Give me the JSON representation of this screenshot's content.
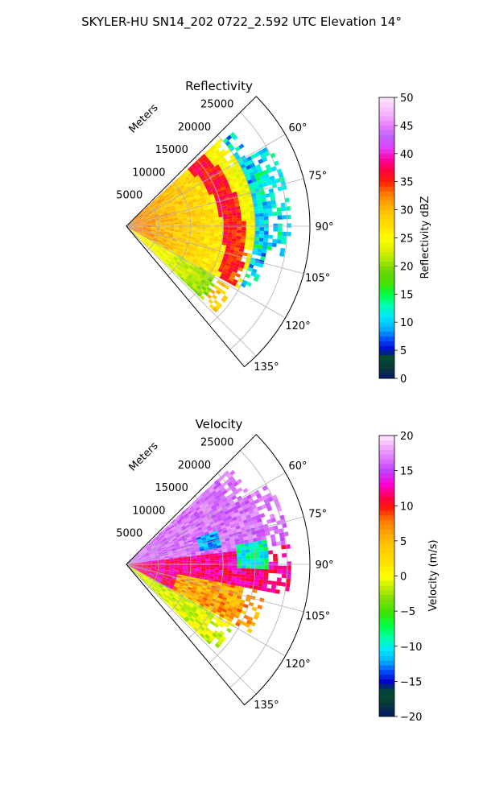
{
  "figure_title": "SKYLER-HU  SN14_202  0722_2.592 UTC Elevation 14°",
  "chart_data": [
    {
      "type": "heatmap",
      "title": "Reflectivity",
      "radial_label": "Meters",
      "radial_ticks": [
        5000,
        10000,
        15000,
        20000,
        25000
      ],
      "radial_tick_labels": [
        "5000",
        "10000",
        "15000",
        "20000",
        "25000"
      ],
      "rlim": [
        0,
        28500
      ],
      "angle_ticks": [
        60,
        75,
        90,
        105,
        120,
        135
      ],
      "angle_tick_labels": [
        "60°",
        "75°",
        "90°",
        "105°",
        "120°",
        "135°"
      ],
      "theta_range_deg": [
        45,
        140
      ],
      "colorbar": {
        "label": "Reflectivity dBZ",
        "range": [
          0,
          50
        ],
        "ticks": [
          0,
          5,
          10,
          15,
          20,
          25,
          30,
          35,
          40,
          45,
          50
        ],
        "tick_labels": [
          "0",
          "5",
          "10",
          "15",
          "20",
          "25",
          "30",
          "35",
          "40",
          "45",
          "50"
        ],
        "colormap": [
          [
            0,
            "#001a66"
          ],
          [
            2,
            "#0a3a3a"
          ],
          [
            4,
            "#004f2a"
          ],
          [
            5,
            "#0000c8"
          ],
          [
            7,
            "#0050ff"
          ],
          [
            9,
            "#00b4ff"
          ],
          [
            11,
            "#00e8ff"
          ],
          [
            13,
            "#00ffb0"
          ],
          [
            15,
            "#00ff40"
          ],
          [
            17,
            "#44e000"
          ],
          [
            19,
            "#66d400"
          ],
          [
            21,
            "#a8e800"
          ],
          [
            23,
            "#e0f000"
          ],
          [
            25,
            "#ffff00"
          ],
          [
            27,
            "#ffe000"
          ],
          [
            29,
            "#ffcc00"
          ],
          [
            31,
            "#ffa800"
          ],
          [
            33,
            "#ff7800"
          ],
          [
            35,
            "#ff2000"
          ],
          [
            37,
            "#ff0040"
          ],
          [
            39,
            "#ff00a0"
          ],
          [
            41,
            "#e040ff"
          ],
          [
            43,
            "#c060ff"
          ],
          [
            45,
            "#e880ff"
          ],
          [
            47,
            "#f4b0ff"
          ],
          [
            50,
            "#ffe8ff"
          ]
        ]
      }
    },
    {
      "type": "heatmap",
      "title": "Velocity",
      "radial_label": "Meters",
      "radial_ticks": [
        5000,
        10000,
        15000,
        20000,
        25000
      ],
      "radial_tick_labels": [
        "5000",
        "10000",
        "15000",
        "20000",
        "25000"
      ],
      "rlim": [
        0,
        28500
      ],
      "angle_ticks": [
        60,
        75,
        90,
        105,
        120,
        135
      ],
      "angle_tick_labels": [
        "60°",
        "75°",
        "90°",
        "105°",
        "120°",
        "135°"
      ],
      "theta_range_deg": [
        45,
        140
      ],
      "colorbar": {
        "label": "Velocity (m/s)",
        "range": [
          -20,
          20
        ],
        "ticks": [
          -20,
          -15,
          -10,
          -5,
          0,
          5,
          10,
          15,
          20
        ],
        "tick_labels": [
          "−20",
          "−15",
          "−10",
          "−5",
          "0",
          "5",
          "10",
          "15",
          "20"
        ],
        "colormap": [
          [
            -20,
            "#001a66"
          ],
          [
            -18,
            "#0a3a3a"
          ],
          [
            -16.5,
            "#004f2a"
          ],
          [
            -15,
            "#0000c8"
          ],
          [
            -13.5,
            "#0050ff"
          ],
          [
            -12,
            "#00b4ff"
          ],
          [
            -10.5,
            "#00e8ff"
          ],
          [
            -9,
            "#00ffb0"
          ],
          [
            -7,
            "#00ff40"
          ],
          [
            -5,
            "#44e000"
          ],
          [
            -3,
            "#88e000"
          ],
          [
            -1.5,
            "#c8f000"
          ],
          [
            0,
            "#ffff00"
          ],
          [
            2,
            "#ffe000"
          ],
          [
            4,
            "#ffcc00"
          ],
          [
            6,
            "#ffa800"
          ],
          [
            8,
            "#ff7800"
          ],
          [
            9.5,
            "#ff2000"
          ],
          [
            11,
            "#ff0040"
          ],
          [
            13,
            "#ff00d0"
          ],
          [
            15,
            "#c040ff"
          ],
          [
            17,
            "#e080ff"
          ],
          [
            18.5,
            "#f4b0ff"
          ],
          [
            20,
            "#ffe8ff"
          ]
        ]
      }
    }
  ]
}
